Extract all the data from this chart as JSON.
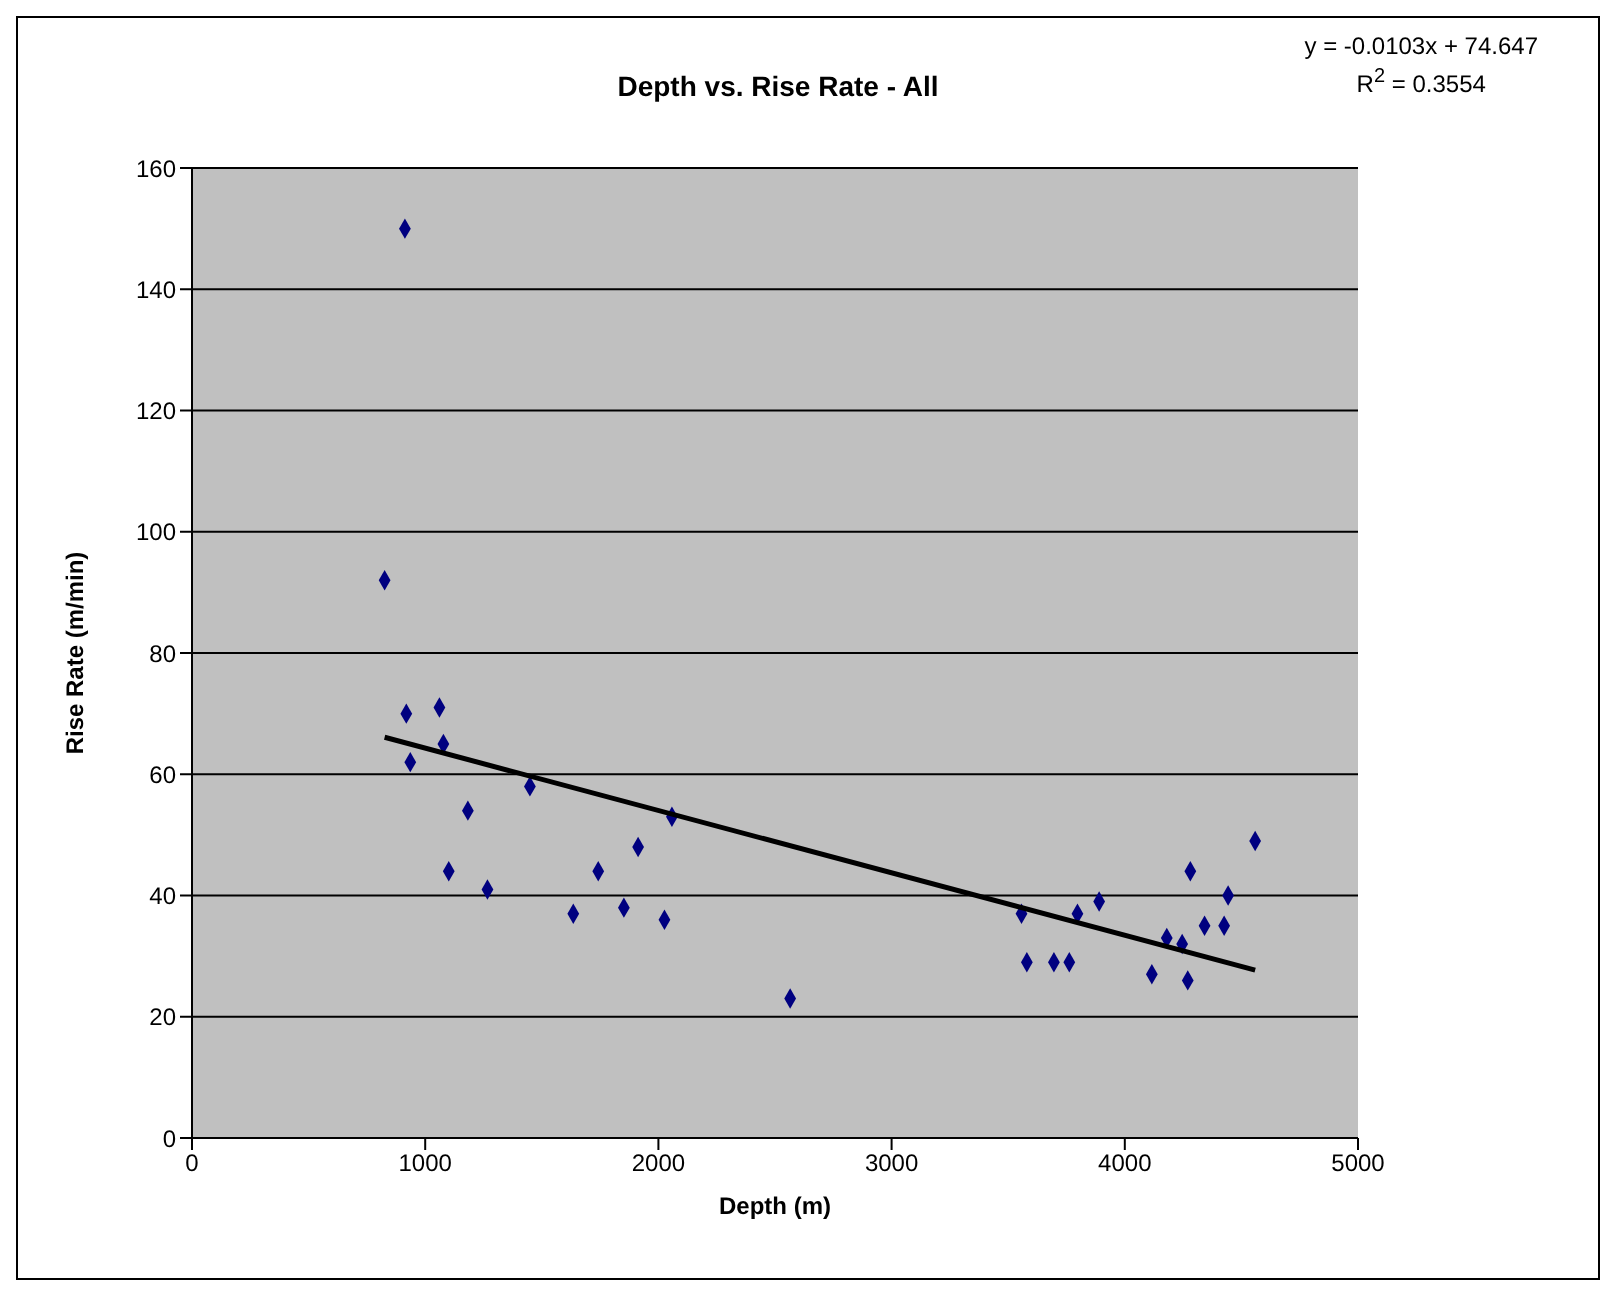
{
  "chart_data": {
    "type": "scatter",
    "title": "Depth vs. Rise Rate - All",
    "xlabel": "Depth (m)",
    "ylabel": "Rise Rate (m/min)",
    "annotations": [
      "y = -0.0103x + 74.647",
      "R$^{2}$ = 0.3554"
    ],
    "series": [
      {
        "color": "#000080",
        "marker": "diamond",
        "x": [
          826,
          919,
          1061,
          1078,
          936,
          1183,
          1449,
          1101,
          1267,
          2058,
          1913,
          1742,
          1635,
          1852,
          2026,
          2565,
          3557,
          3580,
          3696,
          3762,
          3797,
          3890,
          4116,
          4180,
          4246,
          4270,
          4281,
          4342,
          4426,
          4443,
          4559,
          913
        ],
        "values": [
          92,
          70,
          71,
          65,
          62,
          54,
          58,
          44,
          41,
          53,
          48,
          44,
          37,
          38,
          36,
          23,
          37,
          29,
          29,
          29,
          37,
          39,
          27,
          33,
          32,
          26,
          44,
          35,
          35,
          40,
          49,
          150
        ]
      },
      {
        "type": "line",
        "color": "#000000",
        "marker": "none",
        "x": [
          826,
          4559
        ],
        "values": [
          66.1,
          27.7
        ]
      }
    ],
    "xlim": [
      0,
      5000
    ],
    "xticks": [
      0,
      1000,
      2000,
      3000,
      4000,
      5000
    ],
    "ylim": [
      0,
      160
    ],
    "yticks": [
      0,
      20,
      40,
      60,
      80,
      100,
      120,
      140,
      160
    ],
    "grid": "y"
  }
}
